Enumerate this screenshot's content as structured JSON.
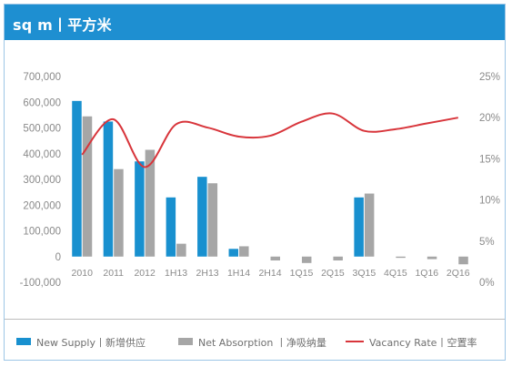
{
  "header": {
    "title": "sq m丨平方米"
  },
  "colors": {
    "header_bg": "#1e8fd1",
    "supply": "#1890cf",
    "absorption": "#a6a6a6",
    "vacancy": "#d8353b"
  },
  "legend": {
    "supply": "New Supply丨新增供应",
    "absorption": "Net Absorption 丨净吸纳量",
    "vacancy": "Vacancy Rate丨空置率"
  },
  "chart_data": {
    "type": "bar",
    "categories": [
      "2010",
      "2011",
      "2012",
      "1H13",
      "2H13",
      "1H14",
      "2H14",
      "1Q15",
      "2Q15",
      "3Q15",
      "4Q15",
      "1Q16",
      "2Q16"
    ],
    "series": [
      {
        "name": "New Supply丨新增供应",
        "type": "bar",
        "axis": "left",
        "values": [
          605000,
          525000,
          370000,
          230000,
          310000,
          30000,
          0,
          0,
          0,
          230000,
          0,
          0,
          0
        ]
      },
      {
        "name": "Net Absorption 丨净吸纳量",
        "type": "bar",
        "axis": "left",
        "values": [
          545000,
          340000,
          415000,
          50000,
          285000,
          40000,
          -15000,
          -25000,
          -15000,
          245000,
          -5000,
          -10000,
          -30000
        ]
      },
      {
        "name": "Vacancy Rate丨空置率",
        "type": "line",
        "axis": "right",
        "values": [
          15.5,
          19.8,
          14.0,
          19.2,
          18.8,
          17.7,
          17.8,
          19.5,
          20.5,
          18.4,
          18.6,
          19.3,
          20.0
        ]
      }
    ],
    "y_left": {
      "min": -100000,
      "max": 700000,
      "ticks": [
        "-100,000",
        "0",
        "100,000",
        "200,000",
        "300,000",
        "400,000",
        "500,000",
        "600,000",
        "700,000"
      ]
    },
    "y_right": {
      "min": 0,
      "max": 25,
      "ticks": [
        "0%",
        "5%",
        "10%",
        "15%",
        "20%",
        "25%"
      ]
    },
    "grid": false,
    "legend_position": "bottom"
  }
}
